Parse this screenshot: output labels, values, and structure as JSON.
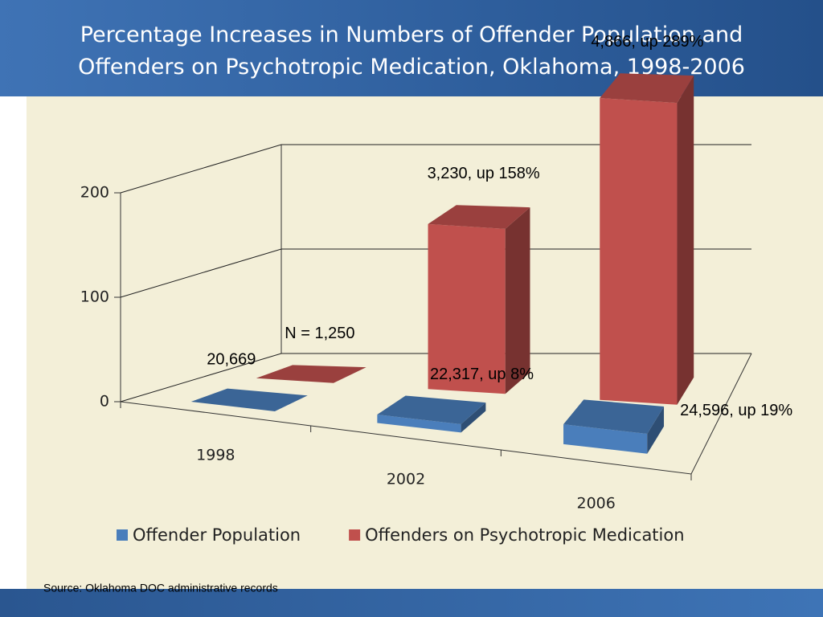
{
  "chart_data": {
    "type": "bar3d",
    "title": "Percentage Increases in Numbers of Offender Population and Offenders on Psychotropic Medication, Oklahoma, 1998-2006",
    "categories": [
      "1998",
      "2002",
      "2006"
    ],
    "series": [
      {
        "name": "Offender Population",
        "color": "#4a7ebb",
        "values": [
          0,
          8,
          19
        ],
        "annotations": [
          "20,669",
          "22,317, up 8%",
          "24,596, up 19%"
        ]
      },
      {
        "name": "Offenders on Psychotropic Medication",
        "color": "#c0504d",
        "values": [
          0,
          158,
          289
        ],
        "annotations": [
          "N = 1,250",
          "3,230, up 158%",
          "4,866, up 289%"
        ]
      }
    ],
    "ylim": [
      0,
      200
    ],
    "yticks": [
      0,
      100,
      200
    ],
    "grid": true,
    "source": "Source: Oklahoma DOC administrative records"
  }
}
